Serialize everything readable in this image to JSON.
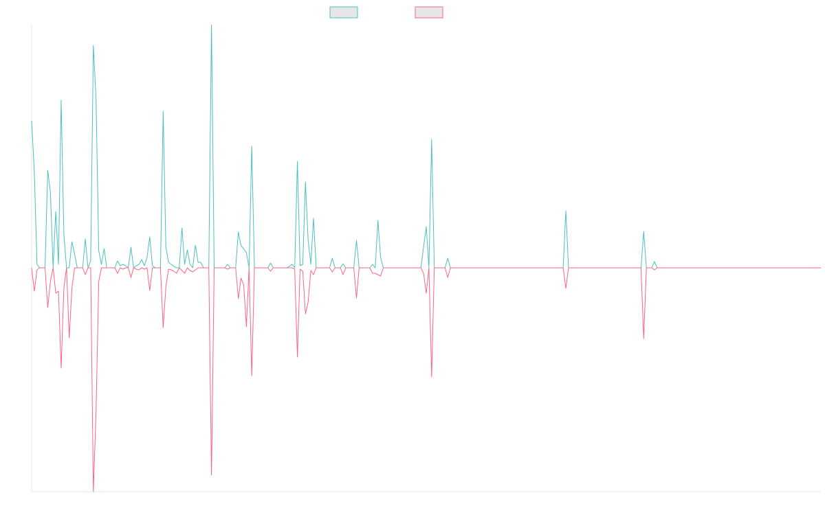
{
  "chart_data": {
    "type": "line",
    "ylim": [
      -326,
      354
    ],
    "series": [
      {
        "color": "#4bc0c0",
        "values": [
          214,
          140,
          5,
          0,
          0,
          0,
          142,
          110,
          0,
          82,
          5,
          244,
          50,
          0,
          0,
          38,
          20,
          0,
          0,
          0,
          42,
          0,
          10,
          324,
          245,
          25,
          5,
          28,
          0,
          0,
          0,
          0,
          10,
          3,
          5,
          3,
          0,
          30,
          0,
          3,
          5,
          12,
          3,
          15,
          45,
          3,
          0,
          0,
          0,
          228,
          30,
          8,
          5,
          2,
          0,
          0,
          58,
          5,
          26,
          5,
          0,
          33,
          8,
          8,
          0,
          0,
          0,
          354,
          0,
          0,
          0,
          0,
          0,
          5,
          0,
          0,
          0,
          52,
          32,
          28,
          22,
          0,
          177,
          0,
          0,
          0,
          0,
          0,
          0,
          7,
          0,
          0,
          0,
          0,
          0,
          0,
          2,
          5,
          0,
          155,
          3,
          5,
          125,
          40,
          5,
          72,
          0,
          0,
          0,
          0,
          0,
          0,
          14,
          0,
          0,
          0,
          6,
          0,
          0,
          0,
          0,
          40,
          0,
          0,
          0,
          0,
          0,
          5,
          0,
          69,
          15,
          0,
          0,
          0,
          0,
          0,
          0,
          0,
          0,
          0,
          0,
          0,
          0,
          0,
          0,
          0,
          30,
          60,
          0,
          187,
          0,
          0,
          0,
          0,
          0,
          14,
          0,
          0,
          0,
          0,
          0,
          0,
          0,
          0,
          0,
          0,
          0,
          0,
          0,
          0,
          0,
          0,
          0,
          0,
          0,
          0,
          0,
          0,
          0,
          0,
          0,
          0,
          0,
          0,
          0,
          0,
          0,
          0,
          0,
          0,
          0,
          0,
          0,
          0,
          0,
          0,
          0,
          0,
          0,
          83,
          0,
          0,
          0,
          0,
          0,
          0,
          0,
          0,
          0,
          0,
          0,
          0,
          0,
          0,
          0,
          0,
          0,
          0,
          0,
          0,
          0,
          0,
          0,
          0,
          0,
          0,
          0,
          0,
          53,
          0,
          0,
          0,
          9,
          0,
          0,
          0,
          0,
          0,
          0,
          0,
          0,
          0,
          0,
          0,
          0,
          0,
          0,
          0,
          0,
          0,
          0,
          0,
          0,
          0,
          0,
          0,
          0,
          0,
          0,
          0,
          0,
          0,
          0,
          0,
          0,
          0,
          0,
          0,
          0,
          0,
          0,
          0,
          0,
          0,
          0,
          0,
          0,
          0,
          0,
          0,
          0,
          0,
          0,
          0,
          0,
          0,
          0,
          0,
          0,
          0,
          0,
          0,
          0,
          0,
          0
        ]
      },
      {
        "color": "#ff6384",
        "values": [
          0,
          -34,
          -3,
          0,
          0,
          0,
          -58,
          -20,
          0,
          -37,
          -34,
          -146,
          -30,
          0,
          -102,
          -30,
          0,
          0,
          0,
          0,
          -10,
          0,
          0,
          -326,
          -210,
          -20,
          0,
          0,
          0,
          0,
          0,
          0,
          -8,
          0,
          -2,
          0,
          0,
          -14,
          0,
          -2,
          -3,
          0,
          -2,
          0,
          -33,
          0,
          0,
          0,
          0,
          -87,
          -28,
          -2,
          -3,
          -5,
          -8,
          0,
          -4,
          -8,
          0,
          -4,
          -6,
          -3,
          0,
          0,
          0,
          0,
          0,
          -302,
          0,
          0,
          0,
          0,
          0,
          -2,
          0,
          0,
          0,
          -45,
          -15,
          -25,
          -86,
          0,
          -157,
          0,
          0,
          0,
          0,
          0,
          0,
          -5,
          0,
          0,
          0,
          0,
          0,
          0,
          0,
          0,
          -2,
          -130,
          -2,
          -5,
          -67,
          -50,
          -4,
          -10,
          0,
          0,
          0,
          0,
          0,
          0,
          -6,
          0,
          0,
          0,
          -10,
          0,
          0,
          0,
          0,
          -44,
          0,
          0,
          0,
          0,
          0,
          -8,
          -8,
          -10,
          -12,
          0,
          0,
          0,
          0,
          0,
          0,
          0,
          0,
          0,
          0,
          0,
          0,
          0,
          0,
          0,
          -8,
          -37,
          0,
          -159,
          0,
          0,
          0,
          0,
          0,
          -14,
          0,
          0,
          0,
          0,
          0,
          0,
          0,
          0,
          0,
          0,
          0,
          0,
          0,
          0,
          0,
          0,
          0,
          0,
          0,
          0,
          0,
          0,
          0,
          0,
          0,
          0,
          0,
          0,
          0,
          0,
          0,
          0,
          0,
          0,
          0,
          0,
          0,
          0,
          0,
          0,
          0,
          0,
          0,
          -30,
          0,
          0,
          0,
          0,
          0,
          0,
          0,
          0,
          0,
          0,
          0,
          0,
          0,
          0,
          0,
          0,
          0,
          0,
          0,
          0,
          0,
          0,
          0,
          0,
          0,
          0,
          0,
          0,
          -103,
          0,
          0,
          0,
          -3,
          0,
          0,
          0,
          0,
          0,
          0,
          0,
          0,
          0,
          0,
          0,
          0,
          0,
          0,
          0,
          0,
          0,
          0,
          0,
          0,
          0,
          0,
          0,
          0,
          0,
          0,
          0,
          0,
          0,
          0,
          0,
          0,
          0,
          0,
          0,
          0,
          0,
          0,
          0,
          0,
          0,
          0,
          0,
          0,
          0,
          0,
          0,
          0,
          0,
          0,
          0,
          0,
          0,
          0,
          0,
          0,
          0,
          0,
          0,
          0,
          0,
          0
        ]
      }
    ]
  }
}
